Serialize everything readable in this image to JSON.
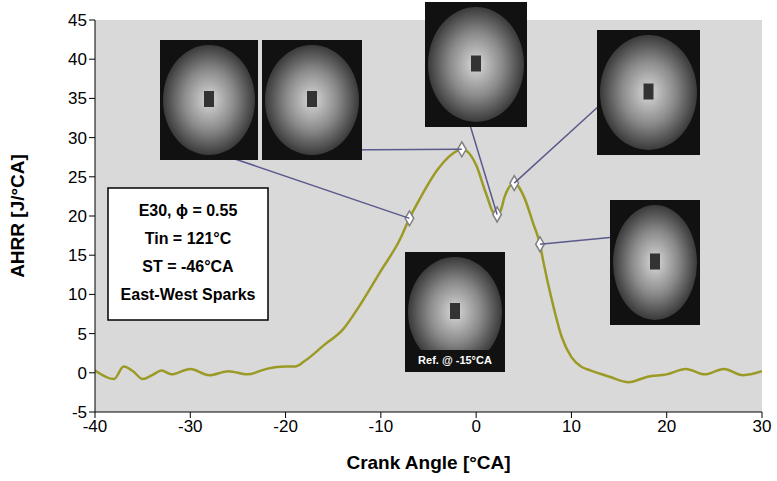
{
  "chart_data": {
    "type": "line",
    "x_label": "Crank Angle [°CA]",
    "y_label": "AHRR [J/°CA]",
    "xlim": [
      -40,
      30
    ],
    "xticks": [
      -40,
      -30,
      -20,
      -10,
      0,
      10,
      20,
      30
    ],
    "ylim": [
      -5,
      45
    ],
    "yticks": [
      -5,
      0,
      5,
      10,
      15,
      20,
      25,
      30,
      35,
      40,
      45
    ],
    "grid": false,
    "color": "#9c9a26",
    "x": [
      -40,
      -38,
      -37,
      -36,
      -35,
      -34,
      -33,
      -32,
      -30,
      -28,
      -26,
      -24,
      -22,
      -20,
      -19,
      -18,
      -16,
      -14,
      -12,
      -10,
      -8,
      -7,
      -6,
      -4,
      -2,
      -1.5,
      -1,
      0,
      1,
      2,
      2.5,
      3,
      4,
      5,
      6,
      6.7,
      7,
      8,
      9,
      10,
      11,
      12,
      14,
      16,
      18,
      20,
      22,
      24,
      26,
      28,
      30
    ],
    "values": [
      0.3,
      -0.8,
      0.8,
      0.2,
      -0.8,
      -0.3,
      0.3,
      -0.2,
      0.5,
      -0.3,
      0.2,
      -0.2,
      0.5,
      0.8,
      0.8,
      1.5,
      3.5,
      5.5,
      9,
      13,
      17,
      19.7,
      22,
      26,
      28.3,
      28.5,
      28.3,
      26.5,
      23,
      20.2,
      20.5,
      22.5,
      24.2,
      22.5,
      19,
      16.4,
      14.5,
      9,
      4.5,
      2,
      0.8,
      0.3,
      -0.5,
      -1.2,
      -0.5,
      -0.2,
      0.5,
      -0.2,
      0.5,
      -0.3,
      0.2
    ],
    "points": {
      "x": [
        -7,
        -1.5,
        2.2,
        4,
        6.7
      ],
      "values": [
        19.7,
        28.5,
        20.2,
        24.2,
        16.4
      ],
      "marker": "diamond"
    },
    "annotation_box": [
      "E30, ϕ = 0.55",
      "Tin = 121°C",
      "ST = -46°CA",
      "East-West Sparks"
    ],
    "reference_image_label": "Ref. @ -15°CA"
  }
}
